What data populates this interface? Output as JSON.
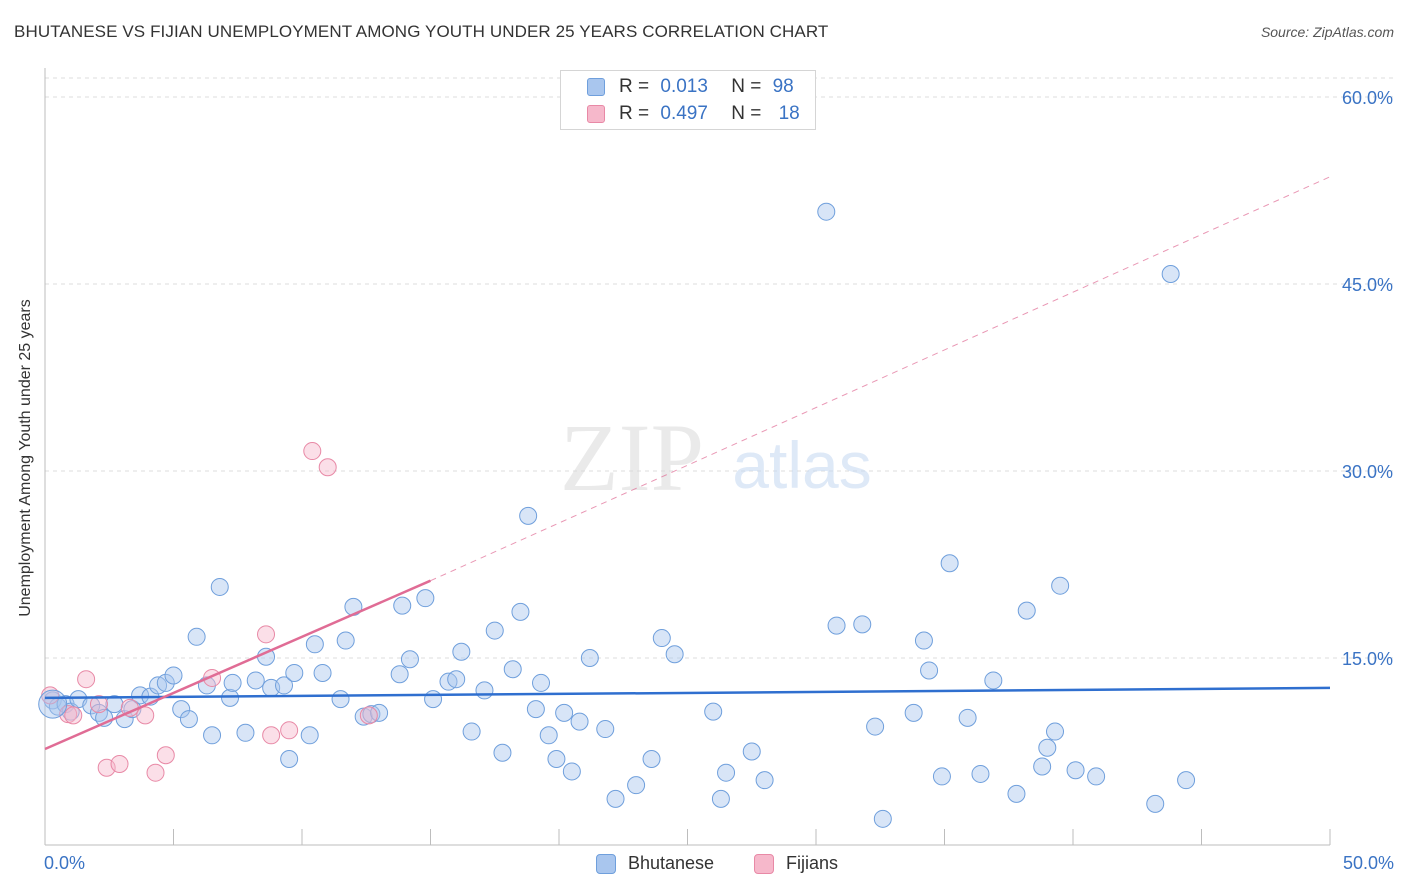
{
  "header": {
    "title": "BHUTANESE VS FIJIAN UNEMPLOYMENT AMONG YOUTH UNDER 25 YEARS CORRELATION CHART",
    "source": "Source: ZipAtlas.com"
  },
  "watermark": {
    "zip": "ZIP",
    "atlas": "atlas"
  },
  "legend_stats": [
    {
      "r_label": "R =",
      "r_value": "0.013",
      "n_label": "N =",
      "n_value": "98",
      "color": "#a9c6ee",
      "border": "#6f9fdc"
    },
    {
      "r_label": "R =",
      "r_value": "0.497",
      "n_label": "N =",
      "n_value": "18",
      "color": "#f6b8cb",
      "border": "#e889a6"
    }
  ],
  "chart_data": {
    "type": "scatter",
    "xlabel": "",
    "ylabel": "Unemployment Among Youth under 25 years",
    "xlim": [
      0,
      50
    ],
    "ylim": [
      0,
      60
    ],
    "x_tick_labels": [
      {
        "value": 0,
        "label": "0.0%"
      },
      {
        "value": 50,
        "label": "50.0%"
      }
    ],
    "y_tick_labels": [
      {
        "value": 15,
        "label": "15.0%"
      },
      {
        "value": 30,
        "label": "30.0%"
      },
      {
        "value": 45,
        "label": "45.0%"
      },
      {
        "value": 60,
        "label": "60.0%"
      }
    ],
    "grid": "horizontal dashed",
    "legend_position": "bottom-center",
    "series": [
      {
        "name": "Bhutanese",
        "color": "#a9c6ee",
        "stroke": "#6f9fdc",
        "trend_color": "#2f6fcf",
        "trend": {
          "x0": 0,
          "y0": 11.8,
          "x1": 50,
          "y1": 12.6
        },
        "points": [
          [
            0.3,
            11.6
          ],
          [
            0.5,
            11.1
          ],
          [
            0.8,
            11.3
          ],
          [
            1.0,
            10.7
          ],
          [
            1.3,
            11.7
          ],
          [
            1.8,
            11.2
          ],
          [
            2.1,
            10.6
          ],
          [
            2.3,
            10.2
          ],
          [
            2.7,
            11.3
          ],
          [
            3.1,
            10.1
          ],
          [
            3.4,
            10.9
          ],
          [
            3.7,
            12.0
          ],
          [
            4.1,
            11.9
          ],
          [
            4.4,
            12.8
          ],
          [
            4.7,
            13.0
          ],
          [
            5.0,
            13.6
          ],
          [
            5.3,
            10.9
          ],
          [
            5.6,
            10.1
          ],
          [
            5.9,
            16.7
          ],
          [
            6.3,
            12.8
          ],
          [
            6.5,
            8.8
          ],
          [
            6.8,
            20.7
          ],
          [
            7.2,
            11.8
          ],
          [
            7.3,
            13.0
          ],
          [
            7.8,
            9.0
          ],
          [
            8.2,
            13.2
          ],
          [
            8.6,
            15.1
          ],
          [
            8.8,
            12.6
          ],
          [
            9.3,
            12.8
          ],
          [
            9.5,
            6.9
          ],
          [
            9.7,
            13.8
          ],
          [
            10.3,
            8.8
          ],
          [
            10.5,
            16.1
          ],
          [
            10.8,
            13.8
          ],
          [
            11.5,
            11.7
          ],
          [
            11.7,
            16.4
          ],
          [
            12.0,
            19.1
          ],
          [
            12.4,
            10.3
          ],
          [
            12.7,
            10.5
          ],
          [
            13.0,
            10.6
          ],
          [
            13.8,
            13.7
          ],
          [
            13.9,
            19.2
          ],
          [
            14.2,
            14.9
          ],
          [
            14.8,
            19.8
          ],
          [
            15.1,
            11.7
          ],
          [
            15.7,
            13.1
          ],
          [
            16.0,
            13.3
          ],
          [
            16.2,
            15.5
          ],
          [
            16.6,
            9.1
          ],
          [
            17.1,
            12.4
          ],
          [
            17.5,
            17.2
          ],
          [
            17.8,
            7.4
          ],
          [
            18.2,
            14.1
          ],
          [
            18.5,
            18.7
          ],
          [
            18.8,
            26.4
          ],
          [
            19.1,
            10.9
          ],
          [
            19.3,
            13.0
          ],
          [
            19.6,
            8.8
          ],
          [
            19.9,
            6.9
          ],
          [
            20.2,
            10.6
          ],
          [
            20.5,
            5.9
          ],
          [
            20.8,
            9.9
          ],
          [
            21.2,
            15.0
          ],
          [
            21.8,
            9.3
          ],
          [
            22.2,
            3.7
          ],
          [
            23.0,
            4.8
          ],
          [
            23.6,
            6.9
          ],
          [
            24.0,
            16.6
          ],
          [
            24.5,
            15.3
          ],
          [
            26.0,
            10.7
          ],
          [
            26.3,
            3.7
          ],
          [
            26.5,
            5.8
          ],
          [
            27.5,
            7.5
          ],
          [
            28.0,
            5.2
          ],
          [
            30.4,
            50.8
          ],
          [
            30.8,
            17.6
          ],
          [
            31.8,
            17.7
          ],
          [
            32.3,
            9.5
          ],
          [
            32.6,
            2.1
          ],
          [
            33.8,
            10.6
          ],
          [
            34.2,
            16.4
          ],
          [
            34.4,
            14.0
          ],
          [
            34.9,
            5.5
          ],
          [
            35.2,
            22.6
          ],
          [
            35.9,
            10.2
          ],
          [
            36.4,
            5.7
          ],
          [
            36.9,
            13.2
          ],
          [
            37.8,
            4.1
          ],
          [
            38.2,
            18.8
          ],
          [
            38.8,
            6.3
          ],
          [
            39.0,
            7.8
          ],
          [
            39.3,
            9.1
          ],
          [
            39.5,
            20.8
          ],
          [
            40.1,
            6.0
          ],
          [
            40.9,
            5.5
          ],
          [
            43.2,
            3.3
          ],
          [
            43.8,
            45.8
          ],
          [
            44.4,
            5.2
          ]
        ]
      },
      {
        "name": "Fijians",
        "color": "#f6b8cb",
        "stroke": "#e889a6",
        "trend_color": "#e06c95",
        "trend": {
          "x0": 0,
          "y0": 7.7,
          "x1": 15.0,
          "y1": 21.2
        },
        "trend_ext": {
          "x1": 50,
          "y1": 53.6
        },
        "points": [
          [
            0.2,
            12.0
          ],
          [
            0.9,
            10.5
          ],
          [
            1.1,
            10.4
          ],
          [
            1.6,
            13.3
          ],
          [
            2.1,
            11.3
          ],
          [
            2.4,
            6.2
          ],
          [
            2.9,
            6.5
          ],
          [
            3.3,
            11.0
          ],
          [
            3.9,
            10.4
          ],
          [
            4.3,
            5.8
          ],
          [
            4.7,
            7.2
          ],
          [
            6.5,
            13.4
          ],
          [
            8.6,
            16.9
          ],
          [
            8.8,
            8.8
          ],
          [
            9.5,
            9.2
          ],
          [
            10.4,
            31.6
          ],
          [
            11.0,
            30.3
          ],
          [
            12.6,
            10.4
          ]
        ]
      }
    ]
  }
}
